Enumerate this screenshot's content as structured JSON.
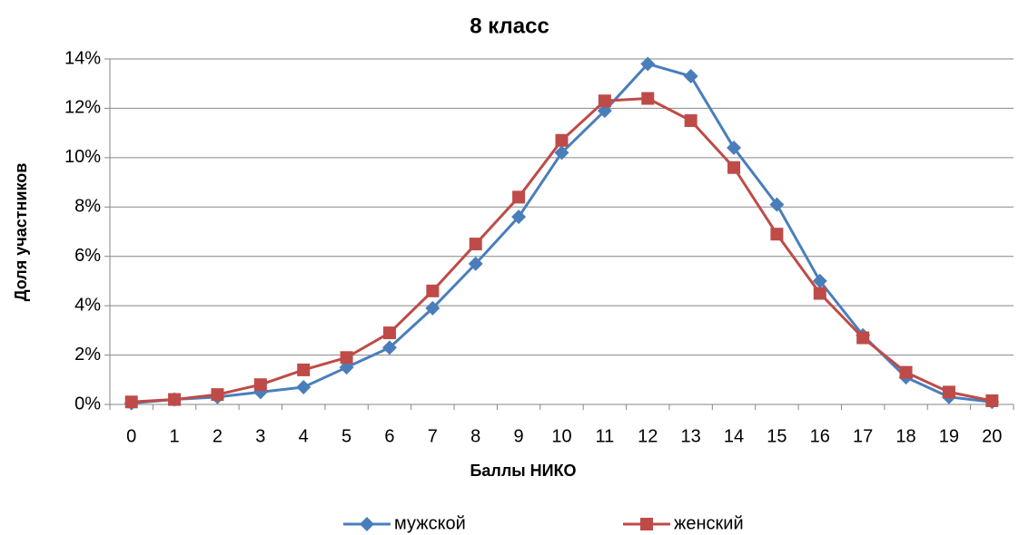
{
  "chart_data": {
    "type": "line",
    "title": "8 класс",
    "x_label": "Баллы НИКО",
    "y_label": "Доля участников",
    "categories": [
      "0",
      "1",
      "2",
      "3",
      "4",
      "5",
      "6",
      "7",
      "8",
      "9",
      "10",
      "11",
      "12",
      "13",
      "14",
      "15",
      "16",
      "17",
      "18",
      "19",
      "20"
    ],
    "series": [
      {
        "name": "мужской",
        "color": "#4a7ebb",
        "marker": "diamond",
        "values": [
          0.05,
          0.2,
          0.3,
          0.5,
          0.7,
          1.5,
          2.3,
          3.9,
          5.7,
          7.6,
          10.2,
          11.9,
          13.8,
          13.3,
          10.4,
          8.1,
          5.0,
          2.8,
          1.1,
          0.3,
          0.1
        ]
      },
      {
        "name": "женский",
        "color": "#be4b48",
        "marker": "square",
        "values": [
          0.1,
          0.2,
          0.4,
          0.8,
          1.4,
          1.9,
          2.9,
          4.6,
          6.5,
          8.4,
          10.7,
          12.3,
          12.4,
          11.5,
          9.6,
          6.9,
          4.5,
          2.7,
          1.3,
          0.5,
          0.15
        ]
      }
    ],
    "ylim": [
      0,
      14
    ],
    "yticks": [
      {
        "value": 0,
        "label": "0%"
      },
      {
        "value": 2,
        "label": "2%"
      },
      {
        "value": 4,
        "label": "4%"
      },
      {
        "value": 6,
        "label": "6%"
      },
      {
        "value": 8,
        "label": "8%"
      },
      {
        "value": 10,
        "label": "10%"
      },
      {
        "value": 12,
        "label": "12%"
      },
      {
        "value": 14,
        "label": "14%"
      }
    ],
    "grid": true,
    "legend": "bottom"
  }
}
